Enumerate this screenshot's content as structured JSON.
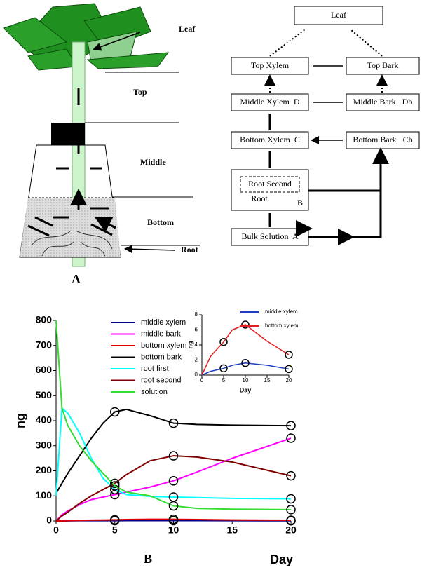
{
  "panel_a": {
    "label": "A",
    "plant_labels": {
      "leaf": "Leaf",
      "top": "Top",
      "middle": "Middle",
      "bottom": "Bottom",
      "root": "Root"
    },
    "flow_nodes": {
      "leaf": "Leaf",
      "top_xylem": "Top Xylem",
      "top_bark": "Top Bark",
      "middle_xylem": "Middle Xylem  D",
      "middle_bark": "Middle Bark   Db",
      "bottom_xylem": "Bottom Xylem  C",
      "bottom_bark": "Bottom Bark   Cb",
      "root_second": "Root Second",
      "root": "Root",
      "root_code": "B",
      "bulk": "Bulk Solution  A"
    }
  },
  "chart_data": [
    {
      "type": "line",
      "panel_label": "B",
      "x_label": "Day",
      "y_label": "ng",
      "x": [
        0,
        0.5,
        1,
        2,
        3,
        4,
        5,
        6,
        8,
        10,
        12,
        15,
        20
      ],
      "xlim": [
        0,
        20
      ],
      "xticks": [
        0,
        5,
        10,
        15,
        20
      ],
      "ylim": [
        0,
        800
      ],
      "yticks": [
        0,
        100,
        200,
        300,
        400,
        500,
        600,
        700,
        800
      ],
      "marker_x": [
        5,
        10,
        20
      ],
      "legend": "upper right",
      "series": [
        {
          "name": "middle xylem",
          "color": "#00008b",
          "values": [
            0,
            0,
            0.5,
            1,
            1,
            1,
            1,
            1.5,
            1.5,
            1.5,
            1.5,
            1,
            0.7
          ]
        },
        {
          "name": "middle bark",
          "color": "#ff00ff",
          "values": [
            0,
            25,
            40,
            65,
            85,
            95,
            105,
            115,
            135,
            160,
            195,
            250,
            330
          ]
        },
        {
          "name": "bottom xylem",
          "color": "#e00000",
          "values": [
            0,
            0.5,
            1,
            2,
            3,
            3.5,
            4.4,
            5.5,
            6.5,
            6.7,
            5.5,
            4,
            2.7
          ]
        },
        {
          "name": "bottom bark",
          "color": "#000000",
          "values": [
            110,
            150,
            190,
            260,
            330,
            390,
            435,
            445,
            420,
            390,
            385,
            382,
            380
          ]
        },
        {
          "name": "root first",
          "color": "#00ffff",
          "values": [
            100,
            450,
            430,
            350,
            250,
            170,
            125,
            105,
            98,
            95,
            93,
            90,
            88
          ]
        },
        {
          "name": "root second",
          "color": "#800000",
          "values": [
            0,
            20,
            35,
            70,
            100,
            125,
            150,
            185,
            240,
            260,
            255,
            235,
            180
          ]
        },
        {
          "name": "solution",
          "color": "#33dd33",
          "values": [
            800,
            450,
            380,
            300,
            240,
            190,
            140,
            115,
            100,
            60,
            50,
            47,
            45
          ]
        }
      ]
    },
    {
      "type": "line",
      "x_label": "Day",
      "y_label": "ng",
      "x": [
        0,
        2,
        5,
        7,
        10,
        15,
        20
      ],
      "xlim": [
        0,
        20
      ],
      "xticks": [
        0,
        5,
        10,
        15,
        20
      ],
      "ylim": [
        0,
        8
      ],
      "yticks": [
        0,
        2,
        4,
        6,
        8
      ],
      "marker_x": [
        5,
        10,
        20
      ],
      "legend": "upper right",
      "series": [
        {
          "name": "middle xylem",
          "color": "#1f3fbf",
          "values": [
            0,
            0.5,
            0.9,
            1.3,
            1.6,
            1.3,
            0.8
          ]
        },
        {
          "name": "bottom xylem",
          "color": "#e02020",
          "values": [
            0,
            2.5,
            4.4,
            6,
            6.7,
            4.5,
            2.7
          ]
        }
      ]
    }
  ]
}
